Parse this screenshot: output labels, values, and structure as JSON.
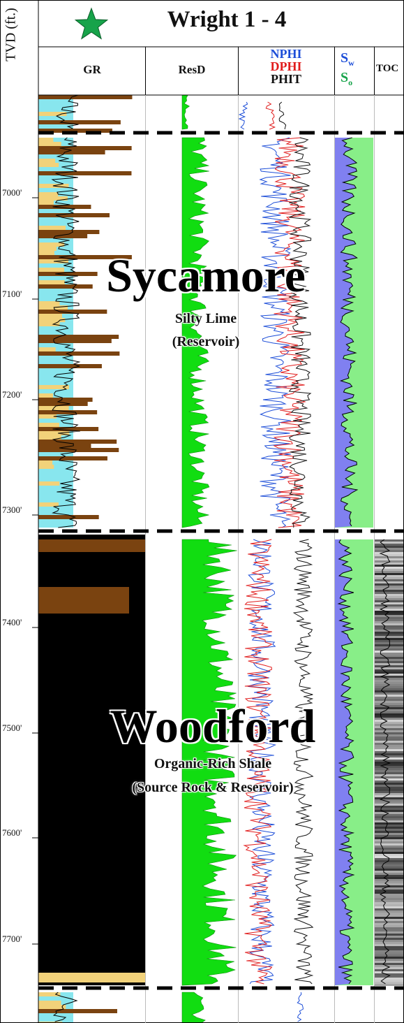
{
  "header": {
    "well_name": "Wright 1 - 4",
    "axis_title": "TVD (ft.)",
    "star_icon": "green-star-icon",
    "star_color": "#17a34a"
  },
  "tracks": {
    "gr": "GR",
    "resd": "ResD",
    "nphi": "NPHI",
    "dphi": "DPHI",
    "phit": "PHIT",
    "sw_main": "S",
    "sw_sub": "w",
    "so_main": "S",
    "so_sub": "o",
    "toc": "TOC"
  },
  "colors": {
    "nphi": "#1d4ed8",
    "dphi": "#e11d1d",
    "phit": "#111111",
    "sw_fill": "#8080f0",
    "so_fill": "#88ee88",
    "resd_fill": "#11dd11",
    "gr_sand": "#88e6ee",
    "gr_shale": "#7a4310",
    "gr_black": "#000000"
  },
  "depth_labels": [
    "7000'",
    "7100'",
    "7200'",
    "7300'",
    "7400'",
    "7500'",
    "7600'",
    "7700'"
  ],
  "formations": [
    {
      "name": "Sycamore",
      "line1": "Silty Lime",
      "line2": "(Reservoir)"
    },
    {
      "name": "Woodford",
      "line1": "Organic-Rich Shale",
      "line2": "(Source Rock & Reservoir)"
    }
  ],
  "chart_data": {
    "type": "well-log",
    "depth_axis": {
      "label": "TVD (ft.)",
      "range": [
        6930,
        7720
      ],
      "ticks": [
        7000,
        7100,
        7200,
        7300,
        7400,
        7500,
        7600,
        7700
      ]
    },
    "tops": [
      6955,
      7340,
      7715
    ],
    "series": [
      {
        "name": "GR"
      },
      {
        "name": "ResD"
      },
      {
        "name": "NPHI"
      },
      {
        "name": "DPHI"
      },
      {
        "name": "PHIT"
      },
      {
        "name": "Sw"
      },
      {
        "name": "So"
      },
      {
        "name": "TOC"
      }
    ]
  }
}
